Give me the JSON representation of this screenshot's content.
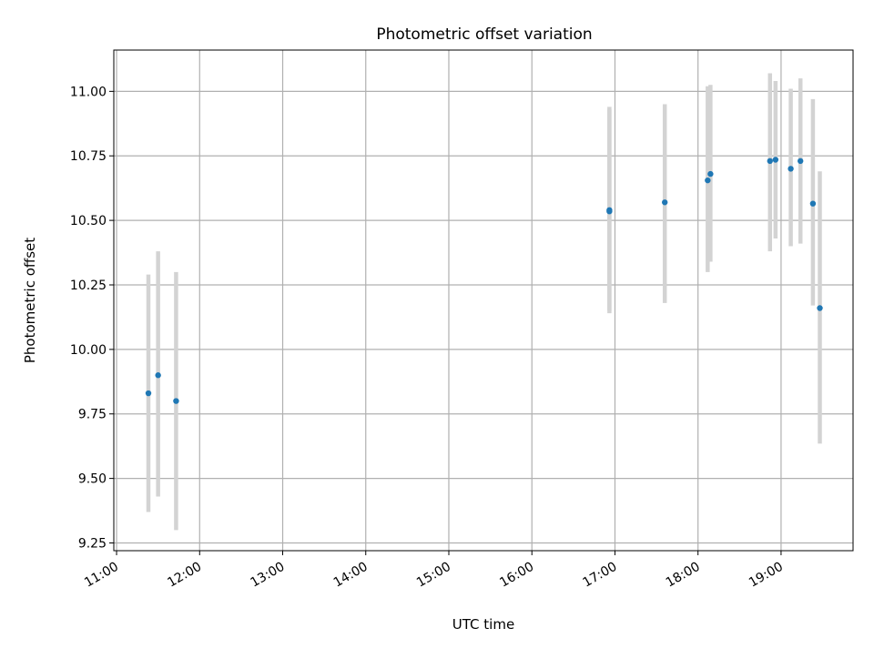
{
  "chart_data": {
    "type": "scatter",
    "title": "Photometric offset variation",
    "xlabel": "UTC time",
    "ylabel": "Photometric offset",
    "x_ticks": [
      "11:00",
      "12:00",
      "13:00",
      "14:00",
      "15:00",
      "16:00",
      "17:00",
      "18:00",
      "19:00"
    ],
    "y_ticks": [
      "9.25",
      "9.50",
      "9.75",
      "10.00",
      "10.25",
      "10.50",
      "10.75",
      "11.00"
    ],
    "xlim": [
      "10:58",
      "19:52"
    ],
    "ylim": [
      9.22,
      11.16
    ],
    "grid": true,
    "marker_color": "#1f77b4",
    "errorbar_color": "#d3d3d3",
    "points": [
      {
        "time": "11:23",
        "value": 9.83,
        "lower": 9.37,
        "upper": 10.29
      },
      {
        "time": "11:30",
        "value": 9.9,
        "lower": 9.43,
        "upper": 10.38
      },
      {
        "time": "11:43",
        "value": 9.8,
        "lower": 9.3,
        "upper": 10.3
      },
      {
        "time": "16:56",
        "value": 10.54,
        "lower": 10.14,
        "upper": 10.94
      },
      {
        "time": "16:56",
        "value": 10.535,
        "lower": 10.15,
        "upper": 10.93
      },
      {
        "time": "17:36",
        "value": 10.57,
        "lower": 10.18,
        "upper": 10.95
      },
      {
        "time": "18:07",
        "value": 10.655,
        "lower": 10.3,
        "upper": 11.02
      },
      {
        "time": "18:09",
        "value": 10.68,
        "lower": 10.34,
        "upper": 11.025
      },
      {
        "time": "18:52",
        "value": 10.73,
        "lower": 10.38,
        "upper": 11.07
      },
      {
        "time": "18:56",
        "value": 10.735,
        "lower": 10.43,
        "upper": 11.04
      },
      {
        "time": "19:07",
        "value": 10.7,
        "lower": 10.4,
        "upper": 11.01
      },
      {
        "time": "19:14",
        "value": 10.73,
        "lower": 10.41,
        "upper": 11.05
      },
      {
        "time": "19:23",
        "value": 10.565,
        "lower": 10.17,
        "upper": 10.97
      },
      {
        "time": "19:28",
        "value": 10.16,
        "lower": 9.635,
        "upper": 10.69
      }
    ]
  }
}
